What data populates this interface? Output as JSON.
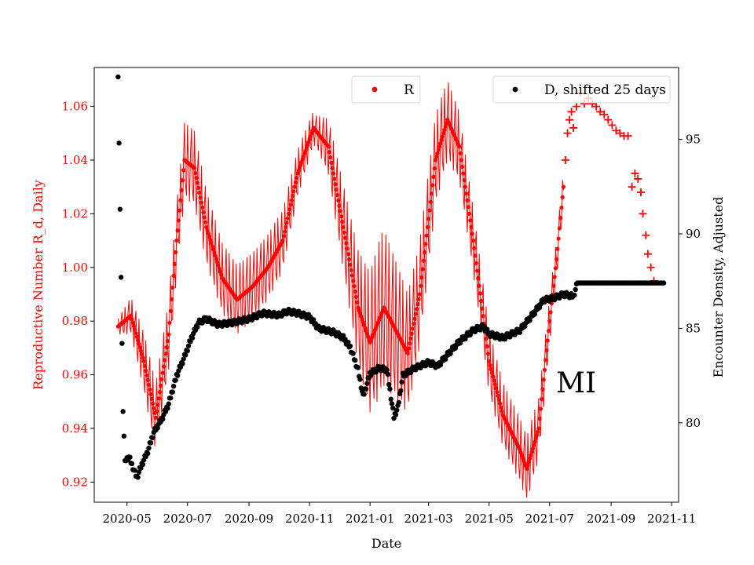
{
  "chart_data": {
    "type": "scatter",
    "region_label": "MI",
    "xlabel": "Date",
    "ylabel_left": "Reproductive Number R_d, Daily",
    "ylabel_right": "Encounter Density, Adjusted",
    "x_range": [
      "2020-03-29",
      "2021-11-08"
    ],
    "x_ticks": [
      "2020-05",
      "2020-07",
      "2020-09",
      "2020-11",
      "2021-01",
      "2021-03",
      "2021-05",
      "2021-07",
      "2021-09",
      "2021-11"
    ],
    "y_left_range": [
      0.9125,
      1.0745
    ],
    "y_left_ticks": [
      "0.92",
      "0.94",
      "0.96",
      "0.98",
      "1.00",
      "1.02",
      "1.04",
      "1.06"
    ],
    "y_right_range": [
      75.8,
      98.8
    ],
    "y_right_ticks": [
      "80",
      "85",
      "90",
      "95"
    ],
    "colors": {
      "R": "#ff0000",
      "D": "#000000",
      "axis": "#000000",
      "background": "#ffffff"
    },
    "legend": [
      {
        "name": "R",
        "marker": "dot",
        "color": "#ff0000",
        "placement": "top-center"
      },
      {
        "name": "D, shifted 25 days",
        "marker": "dot",
        "color": "#000000",
        "placement": "top-right"
      }
    ],
    "series": [
      {
        "name": "R",
        "axis": "left",
        "marker": "dot",
        "color": "#ff0000",
        "oscillation_amplitude": [
          [
            0,
            0.003
          ],
          [
            30,
            0.012
          ],
          [
            70,
            0.014
          ],
          [
            160,
            0.012
          ],
          [
            200,
            0.006
          ],
          [
            265,
            0.03
          ],
          [
            300,
            0.02
          ],
          [
            350,
            0.012
          ],
          [
            420,
            0.012
          ],
          [
            455,
            0.005
          ],
          [
            470,
            0.006
          ]
        ],
        "trend": [
          [
            "2020-04-22",
            0.978
          ],
          [
            "2020-05-05",
            0.982
          ],
          [
            "2020-05-18",
            0.965
          ],
          [
            "2020-05-30",
            0.944
          ],
          [
            "2020-06-12",
            0.975
          ],
          [
            "2020-06-20",
            1.01
          ],
          [
            "2020-06-28",
            1.04
          ],
          [
            "2020-07-08",
            1.037
          ],
          [
            "2020-07-20",
            1.015
          ],
          [
            "2020-08-05",
            0.996
          ],
          [
            "2020-08-20",
            0.988
          ],
          [
            "2020-09-05",
            0.993
          ],
          [
            "2020-09-20",
            1.0
          ],
          [
            "2020-10-05",
            1.01
          ],
          [
            "2020-10-20",
            1.035
          ],
          [
            "2020-11-05",
            1.052
          ],
          [
            "2020-11-20",
            1.045
          ],
          [
            "2020-12-05",
            1.015
          ],
          [
            "2020-12-20",
            0.985
          ],
          [
            "2021-01-01",
            0.972
          ],
          [
            "2021-01-15",
            0.985
          ],
          [
            "2021-01-25",
            0.978
          ],
          [
            "2021-02-08",
            0.968
          ],
          [
            "2021-02-20",
            0.99
          ],
          [
            "2021-03-08",
            1.04
          ],
          [
            "2021-03-20",
            1.055
          ],
          [
            "2021-04-01",
            1.045
          ],
          [
            "2021-04-15",
            1.01
          ],
          [
            "2021-05-01",
            0.965
          ],
          [
            "2021-05-15",
            0.945
          ],
          [
            "2021-06-01",
            0.932
          ],
          [
            "2021-06-08",
            0.925
          ],
          [
            "2021-06-20",
            0.94
          ],
          [
            "2021-07-01",
            0.98
          ],
          [
            "2021-07-08",
            1.003
          ],
          [
            "2021-07-15",
            1.03
          ]
        ]
      },
      {
        "name": "R (projected)",
        "axis": "left",
        "marker": "plus",
        "color": "#ff0000",
        "points": [
          [
            "2021-07-17",
            1.04
          ],
          [
            "2021-07-19",
            1.05
          ],
          [
            "2021-07-21",
            1.055
          ],
          [
            "2021-07-23",
            1.058
          ],
          [
            "2021-07-25",
            1.052
          ],
          [
            "2021-07-28",
            1.06
          ],
          [
            "2021-08-01",
            1.065
          ],
          [
            "2021-08-05",
            1.061
          ],
          [
            "2021-08-09",
            1.063
          ],
          [
            "2021-08-13",
            1.061
          ],
          [
            "2021-08-17",
            1.06
          ],
          [
            "2021-08-21",
            1.058
          ],
          [
            "2021-08-25",
            1.057
          ],
          [
            "2021-08-29",
            1.055
          ],
          [
            "2021-09-02",
            1.053
          ],
          [
            "2021-09-06",
            1.051
          ],
          [
            "2021-09-10",
            1.05
          ],
          [
            "2021-09-14",
            1.049
          ],
          [
            "2021-09-18",
            1.049
          ],
          [
            "2021-09-22",
            1.03
          ],
          [
            "2021-09-25",
            1.035
          ],
          [
            "2021-09-28",
            1.033
          ],
          [
            "2021-10-01",
            1.028
          ],
          [
            "2021-10-03",
            1.02
          ],
          [
            "2021-10-06",
            1.012
          ],
          [
            "2021-10-08",
            1.005
          ],
          [
            "2021-10-11",
            1.0
          ],
          [
            "2021-10-14",
            0.995
          ]
        ]
      },
      {
        "name": "D, shifted 25 days",
        "axis": "right",
        "marker": "dot",
        "color": "#000000",
        "trend": [
          [
            "2020-04-22",
            98.3
          ],
          [
            "2020-04-23",
            94.8
          ],
          [
            "2020-04-24",
            91.3
          ],
          [
            "2020-04-25",
            87.7
          ],
          [
            "2020-04-26",
            84.2
          ],
          [
            "2020-04-27",
            80.6
          ],
          [
            "2020-04-29",
            78.0
          ],
          [
            "2020-05-03",
            78.2
          ],
          [
            "2020-05-08",
            77.5
          ],
          [
            "2020-05-11",
            77.1
          ],
          [
            "2020-05-16",
            77.8
          ],
          [
            "2020-05-22",
            78.5
          ],
          [
            "2020-05-28",
            79.5
          ],
          [
            "2020-06-05",
            80.2
          ],
          [
            "2020-06-12",
            81.0
          ],
          [
            "2020-06-20",
            82.5
          ],
          [
            "2020-06-28",
            83.5
          ],
          [
            "2020-07-05",
            84.5
          ],
          [
            "2020-07-12",
            85.3
          ],
          [
            "2020-07-20",
            85.5
          ],
          [
            "2020-08-01",
            85.2
          ],
          [
            "2020-08-15",
            85.3
          ],
          [
            "2020-09-01",
            85.5
          ],
          [
            "2020-09-15",
            85.8
          ],
          [
            "2020-10-01",
            85.7
          ],
          [
            "2020-10-10",
            85.9
          ],
          [
            "2020-10-20",
            85.8
          ],
          [
            "2020-11-01",
            85.6
          ],
          [
            "2020-11-10",
            85.0
          ],
          [
            "2020-11-25",
            84.8
          ],
          [
            "2020-12-05",
            84.5
          ],
          [
            "2020-12-12",
            84.0
          ],
          [
            "2020-12-20",
            82.8
          ],
          [
            "2020-12-25",
            81.4
          ],
          [
            "2021-01-01",
            82.6
          ],
          [
            "2021-01-10",
            82.9
          ],
          [
            "2021-01-18",
            82.8
          ],
          [
            "2021-01-25",
            80.3
          ],
          [
            "2021-01-29",
            80.8
          ],
          [
            "2021-02-03",
            82.5
          ],
          [
            "2021-02-15",
            82.9
          ],
          [
            "2021-03-01",
            83.2
          ],
          [
            "2021-03-10",
            83.0
          ],
          [
            "2021-03-20",
            83.6
          ],
          [
            "2021-04-01",
            84.3
          ],
          [
            "2021-04-15",
            84.9
          ],
          [
            "2021-04-25",
            85.1
          ],
          [
            "2021-05-01",
            84.7
          ],
          [
            "2021-05-15",
            84.5
          ],
          [
            "2021-06-01",
            84.9
          ],
          [
            "2021-06-15",
            85.8
          ],
          [
            "2021-06-25",
            86.5
          ],
          [
            "2021-07-05",
            86.6
          ],
          [
            "2021-07-15",
            86.8
          ],
          [
            "2021-07-25",
            86.7
          ],
          [
            "2021-07-29",
            87.4
          ],
          [
            "2021-10-24",
            87.4
          ]
        ]
      }
    ]
  }
}
